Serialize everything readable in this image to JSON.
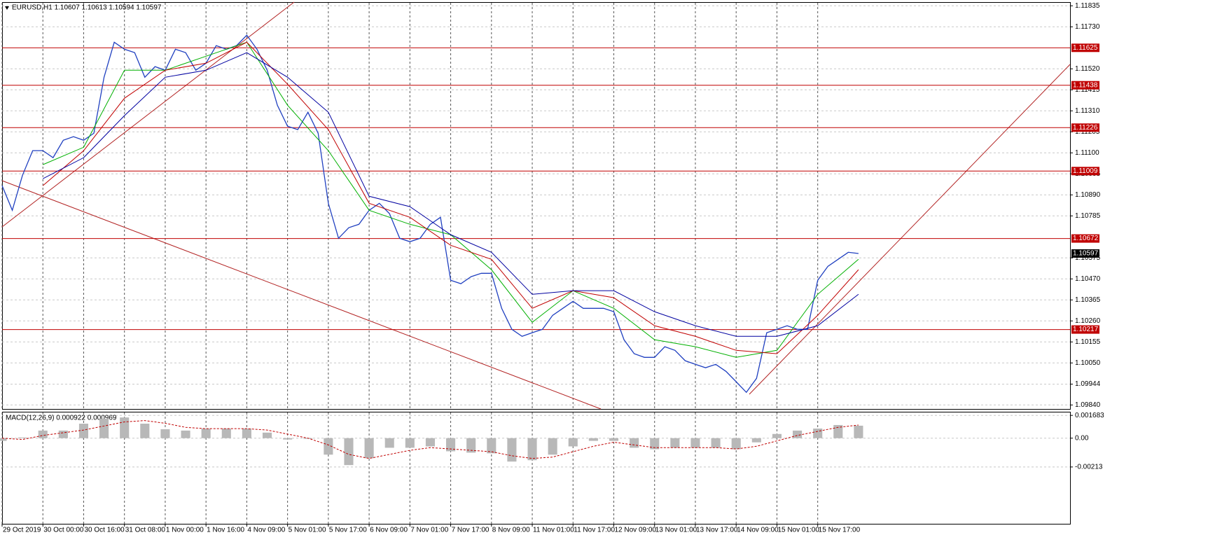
{
  "chart_data": [
    {
      "type": "line",
      "title": "EURUSD,H1  1.10607 1.10613 1.10594 1.10597",
      "xlim": [
        0,
        419
      ],
      "xticks": [
        {
          "value": 0,
          "label": "29 Oct 2019"
        },
        {
          "value": 16,
          "label": "30 Oct 00:00"
        },
        {
          "value": 32,
          "label": "30 Oct 16:00"
        },
        {
          "value": 48,
          "label": "31 Oct 08:00"
        },
        {
          "value": 64,
          "label": "1 Nov 00:00"
        },
        {
          "value": 80,
          "label": "1 Nov 16:00"
        },
        {
          "value": 96,
          "label": "4 Nov 09:00"
        },
        {
          "value": 112,
          "label": "5 Nov 01:00"
        },
        {
          "value": 128,
          "label": "5 Nov 17:00"
        },
        {
          "value": 144,
          "label": "6 Nov 09:00"
        },
        {
          "value": 160,
          "label": "7 Nov 01:00"
        },
        {
          "value": 176,
          "label": "7 Nov 17:00"
        },
        {
          "value": 192,
          "label": "8 Nov 09:00"
        },
        {
          "value": 208,
          "label": "11 Nov 01:00"
        },
        {
          "value": 224,
          "label": "11 Nov 17:00"
        },
        {
          "value": 240,
          "label": "12 Nov 09:00"
        },
        {
          "value": 256,
          "label": "13 Nov 01:00"
        },
        {
          "value": 272,
          "label": "13 Nov 17:00"
        },
        {
          "value": 288,
          "label": "14 Nov 09:00"
        },
        {
          "value": 304,
          "label": "15 Nov 01:00"
        },
        {
          "value": 320,
          "label": "15 Nov 17:00"
        }
      ],
      "ylim": [
        1.0982,
        1.1185
      ],
      "yticks": [
        1.11835,
        {
          "value": 1.1173,
          "label": "1.11730"
        },
        {
          "value": 1.1152,
          "label": "1.11520"
        },
        1.11415,
        {
          "value": 1.1131,
          "label": "1.11310"
        },
        1.11205,
        {
          "value": 1.111,
          "label": "1.11100"
        },
        1.10995,
        {
          "value": 1.1089,
          "label": "1.10890"
        },
        1.10785,
        1.10575,
        {
          "value": 1.1047,
          "label": "1.10470"
        },
        1.10365,
        {
          "value": 1.1026,
          "label": "1.10260"
        },
        1.10155,
        {
          "value": 1.1005,
          "label": "1.10050"
        },
        1.09944,
        {
          "value": 1.0984,
          "label": "1.09840"
        }
      ],
      "grid": true,
      "levels": {
        "color": "#c00000",
        "values": [
          1.11625,
          1.11438,
          1.11226,
          1.11009,
          1.10672,
          1.10217
        ]
      },
      "series": [
        {
          "type": "line",
          "color": "#2040c0",
          "x": [
            0,
            4,
            8,
            12,
            16,
            20,
            24,
            28,
            32,
            36,
            40,
            44,
            48,
            52,
            56,
            60,
            64,
            68,
            72,
            76,
            80,
            84,
            88,
            92,
            96,
            100,
            104,
            108,
            112,
            116,
            120,
            124,
            128,
            132,
            136,
            140,
            144,
            148,
            152,
            156,
            160,
            164,
            168,
            172,
            176,
            180,
            184,
            188,
            192,
            196,
            200,
            204,
            208,
            212,
            216,
            220,
            224,
            228,
            232,
            236,
            240,
            244,
            248,
            252,
            256,
            260,
            264,
            268,
            272,
            276,
            280,
            284,
            288,
            292,
            296,
            300,
            304,
            308,
            312,
            316,
            320,
            324,
            328,
            332,
            336
          ],
          "values": [
            1.10936,
            1.10813,
            1.10988,
            1.11111,
            1.11111,
            1.11076,
            1.11163,
            1.11181,
            1.11163,
            1.11198,
            1.11478,
            1.11653,
            1.11618,
            1.11601,
            1.11478,
            1.11531,
            1.11513,
            1.11618,
            1.11601,
            1.11513,
            1.11548,
            1.11636,
            1.11618,
            1.11636,
            1.11688,
            1.11618,
            1.11513,
            1.11338,
            1.11233,
            1.11216,
            1.11303,
            1.11198,
            1.10848,
            1.10673,
            1.10726,
            1.10743,
            1.10813,
            1.10848,
            1.10796,
            1.10673,
            1.10656,
            1.10673,
            1.10743,
            1.10778,
            1.10463,
            1.10446,
            1.10481,
            1.10498,
            1.10498,
            1.10323,
            1.10218,
            1.10183,
            1.10201,
            1.10218,
            1.10288,
            1.10323,
            1.10358,
            1.10323,
            1.10323,
            1.10323,
            1.10306,
            1.10166,
            1.10096,
            1.10078,
            1.10078,
            1.10131,
            1.10113,
            1.10061,
            1.10043,
            1.10026,
            1.10043,
            1.10008,
            1.09956,
            1.09903,
            1.09973,
            1.10201,
            1.10218,
            1.10236,
            1.10218,
            1.10218,
            1.10463,
            1.10533,
            1.10568,
            1.10603,
            1.10597
          ]
        },
        {
          "type": "line",
          "color": "#00b000",
          "x": [
            16,
            32,
            48,
            64,
            80,
            96,
            112,
            128,
            144,
            160,
            176,
            192,
            208,
            224,
            240,
            256,
            272,
            288,
            304,
            320,
            336
          ],
          "values": [
            1.11041,
            1.11128,
            1.11513,
            1.11513,
            1.11583,
            1.11653,
            1.11338,
            1.11111,
            1.10813,
            1.10743,
            1.10691,
            1.10516,
            1.10253,
            1.10411,
            1.10323,
            1.10166,
            1.10131,
            1.10078,
            1.10113,
            1.10393,
            1.10568
          ]
        },
        {
          "type": "line",
          "color": "#c00000",
          "x": [
            16,
            32,
            48,
            64,
            80,
            96,
            112,
            128,
            144,
            160,
            176,
            192,
            208,
            224,
            240,
            256,
            272,
            288,
            304,
            320,
            336
          ],
          "values": [
            1.10936,
            1.11111,
            1.11373,
            1.11513,
            1.11548,
            1.11653,
            1.11443,
            1.11216,
            1.10848,
            1.10778,
            1.10638,
            1.10568,
            1.10323,
            1.10411,
            1.10376,
            1.10236,
            1.10183,
            1.10113,
            1.10096,
            1.10288,
            1.10516
          ]
        },
        {
          "type": "line",
          "color": "#0000a0",
          "x": [
            16,
            32,
            48,
            64,
            80,
            96,
            112,
            128,
            144,
            160,
            176,
            192,
            208,
            224,
            240,
            256,
            272,
            288,
            304,
            320,
            336
          ],
          "values": [
            1.10971,
            1.11076,
            1.11286,
            1.11478,
            1.11513,
            1.11601,
            1.11478,
            1.11303,
            1.10883,
            1.10831,
            1.10691,
            1.10603,
            1.10393,
            1.10411,
            1.10411,
            1.10306,
            1.10236,
            1.10183,
            1.10183,
            1.10236,
            1.10393
          ]
        }
      ]
    },
    {
      "type": "bar",
      "title": "MACD(12,26,9) 0.000922 0.000969",
      "xlim": [
        0,
        419
      ],
      "ylim": [
        -0.00633,
        0.0019
      ],
      "yticks": [
        0.001683,
        {
          "value": 0,
          "label": "0.00"
        },
        -0.00213
      ],
      "grid": true,
      "series": [
        {
          "type": "bar",
          "color": "#b8b8b8",
          "x": [
            0,
            8,
            16,
            24,
            32,
            40,
            48,
            56,
            64,
            72,
            80,
            88,
            96,
            104,
            112,
            120,
            128,
            136,
            144,
            152,
            160,
            168,
            176,
            184,
            192,
            200,
            208,
            216,
            224,
            232,
            240,
            248,
            256,
            264,
            272,
            280,
            288,
            296,
            304,
            312,
            320,
            328,
            336
          ],
          "values": [
            -0.0002,
            5e-05,
            0.00056,
            0.00056,
            0.00107,
            0.00143,
            0.00153,
            0.00107,
            0.00066,
            0.00056,
            0.00071,
            0.00071,
            0.00071,
            0.00041,
            -0.0001,
            -5e-05,
            -0.00122,
            -0.00199,
            -0.00148,
            -0.00071,
            -0.00071,
            -0.00061,
            -0.00097,
            -0.00107,
            -0.00112,
            -0.00173,
            -0.00163,
            -0.00122,
            -0.00061,
            -0.0002,
            -0.0002,
            -0.00071,
            -0.00082,
            -0.00071,
            -0.00071,
            -0.00071,
            -0.00082,
            -0.00031,
            0.00031,
            0.00056,
            0.00071,
            0.00097,
            0.000922
          ]
        },
        {
          "type": "line",
          "color": "#c00000",
          "dashed": true,
          "x": [
            0,
            8,
            16,
            24,
            32,
            40,
            48,
            56,
            64,
            72,
            80,
            88,
            96,
            104,
            112,
            120,
            128,
            136,
            144,
            152,
            160,
            168,
            176,
            184,
            192,
            200,
            208,
            216,
            224,
            232,
            240,
            248,
            256,
            264,
            272,
            280,
            288,
            296,
            304,
            312,
            320,
            328,
            336
          ],
          "values": [
            0,
            -0.0001,
            0.0002,
            0.0004,
            0.0006,
            0.0009,
            0.0012,
            0.0013,
            0.0011,
            0.0008,
            0.0007,
            0.0007,
            0.0007,
            0.0006,
            0.0003,
            0,
            -0.0005,
            -0.0012,
            -0.0015,
            -0.0012,
            -0.0009,
            -0.0007,
            -0.0008,
            -0.0009,
            -0.001,
            -0.0013,
            -0.0015,
            -0.0014,
            -0.001,
            -0.0006,
            -0.0003,
            -0.0005,
            -0.0007,
            -0.0007,
            -0.0007,
            -0.0007,
            -0.0008,
            -0.0006,
            -0.0002,
            0.0002,
            0.0005,
            0.0008,
            0.000969
          ]
        }
      ]
    }
  ]
}
